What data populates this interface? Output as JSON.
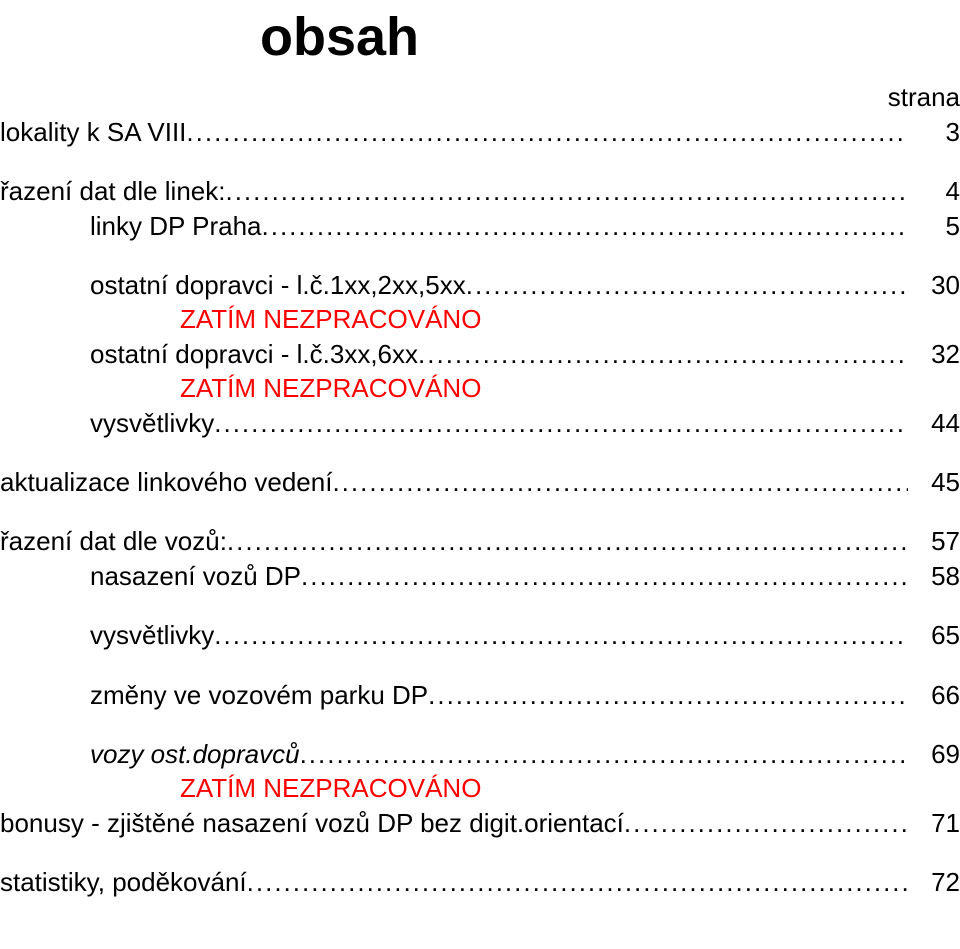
{
  "title": "obsah",
  "strana_label": "strana",
  "colors": {
    "text": "#000000",
    "note": "#ff0000",
    "background": "#ffffff"
  },
  "typography": {
    "title_fontsize_pt": 40,
    "title_weight": "bold",
    "body_fontsize_pt": 20,
    "font_family": "Arial"
  },
  "entries": [
    {
      "label": "lokality k SA VIII",
      "page": "3",
      "indent": 0
    },
    {
      "label": "řazení dat dle linek:",
      "page": "4",
      "indent": 0
    },
    {
      "label": "linky DP Praha",
      "page": "5",
      "indent": 1
    },
    {
      "label": "ostatní dopravci - l.č.1xx,2xx,5xx",
      "page": "30",
      "indent": 1
    },
    {
      "note": "ZATÍM NEZPRACOVÁNO"
    },
    {
      "label": "ostatní dopravci - l.č.3xx,6xx",
      "page": "32",
      "indent": 1
    },
    {
      "note": "ZATÍM NEZPRACOVÁNO"
    },
    {
      "label": "vysvětlivky",
      "page": "44",
      "indent": 1
    },
    {
      "label": "aktualizace linkového vedení",
      "page": "45",
      "indent": 0
    },
    {
      "label": "řazení dat dle vozů:",
      "page": "57",
      "indent": 0
    },
    {
      "label": "nasazení vozů DP",
      "page": "58",
      "indent": 1
    },
    {
      "label": "vysvětlivky",
      "page": "65",
      "indent": 1
    },
    {
      "label": "změny ve vozovém parku DP",
      "page": "66",
      "indent": 1
    },
    {
      "label": "vozy ost.dopravců",
      "page": "69",
      "indent": 1,
      "italic": true
    },
    {
      "note": "ZATÍM NEZPRACOVÁNO"
    },
    {
      "label": "bonusy - zjištěné nasazení vozů DP bez digit.orientací",
      "page": "71",
      "indent": 0
    },
    {
      "label": "statistiky, poděkování",
      "page": "72",
      "indent": 0
    }
  ]
}
